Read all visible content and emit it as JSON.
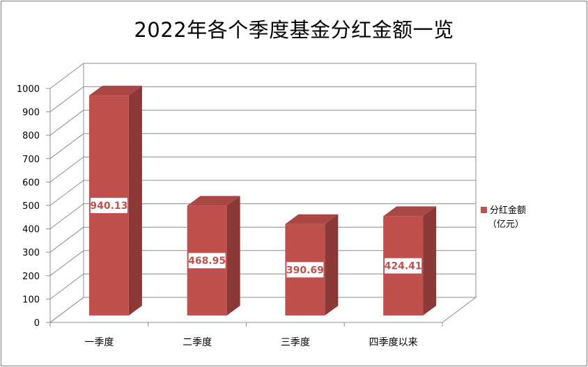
{
  "chart_data": {
    "type": "bar",
    "title": "2022年各个季度基金分红金额一览",
    "categories": [
      "一季度",
      "二季度",
      "三季度",
      "四季度以来"
    ],
    "series": [
      {
        "name": "分红金额（亿元）",
        "values": [
          940.13,
          468.95,
          390.69,
          424.41
        ]
      }
    ],
    "data_labels": [
      "940.13",
      "468.95",
      "390.69",
      "424.41"
    ],
    "ylim": [
      0,
      1000
    ],
    "yticks": [
      "0",
      "100",
      "200",
      "300",
      "400",
      "500",
      "600",
      "700",
      "800",
      "900",
      "1000"
    ],
    "grid": true,
    "style": "3d-column",
    "legend_position": "right",
    "legend": {
      "line1": "分红金额",
      "line2": "（亿元）"
    },
    "colors": {
      "bar_front": "#c0504d",
      "bar_side": "#8c3836",
      "bar_top": "#a94744",
      "label_text": "#c0504d"
    }
  }
}
